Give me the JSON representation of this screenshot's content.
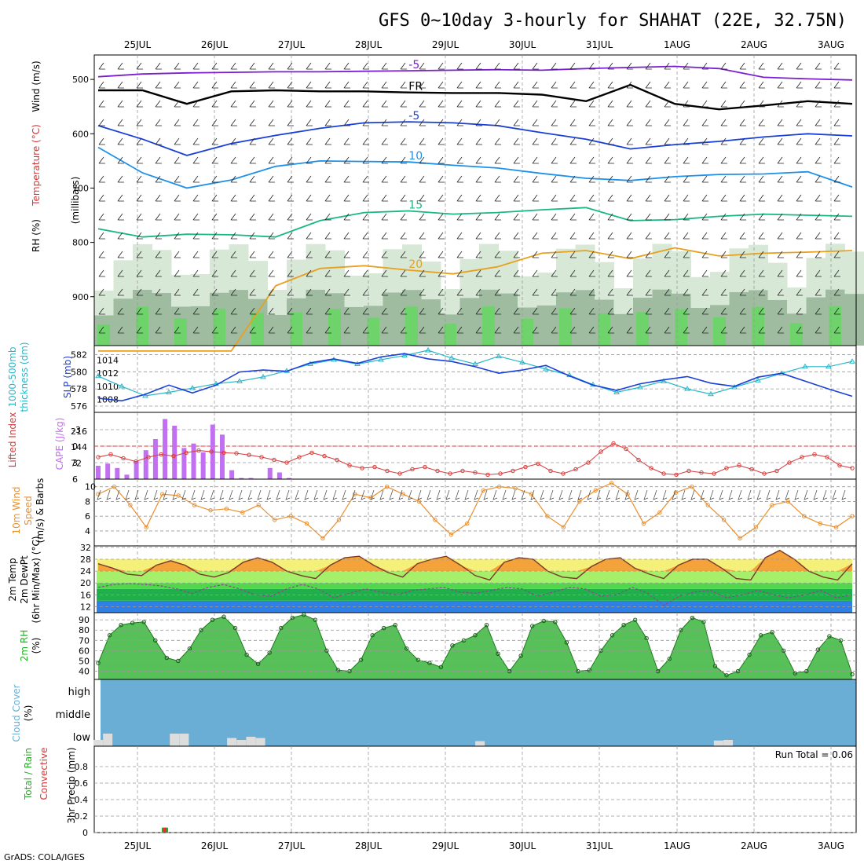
{
  "chart_data": {
    "type": "meteogram",
    "title": "GFS 0~10day 3-hourly for SHAHAT (22E, 32.75N)",
    "credit": "GrADS: COLA/IGES",
    "dates": [
      "25JUL",
      "26JUL",
      "27JUL",
      "28JUL",
      "29JUL",
      "30JUL",
      "31JUL",
      "1AUG",
      "2AUG",
      "3AUG"
    ],
    "colors": {
      "purple": "#7a1fd0",
      "freezing": "#000000",
      "blue5": "#1a3fd8",
      "sky10": "#1e90e8",
      "green15": "#18b880",
      "orange20": "#e8a020",
      "orange25": "#e88020",
      "slp": "#1a3fd8",
      "thick": "#29b8c8",
      "cape": "#c070f0",
      "li": "#d83a3a",
      "wind": "#e89030",
      "rh": "#20b020",
      "cloud": "#6aaed6",
      "rain_total": "#20b020",
      "rain_conv": "#e03030"
    },
    "panels": [
      {
        "id": "upper-air",
        "ylabel_parts": [
          "RH (%)",
          "Temperature (°C)",
          "Wind (m/s)"
        ],
        "axis_label": "(millibars)",
        "type": "contour",
        "yticks": [
          500,
          600,
          700,
          800,
          900
        ],
        "contours": [
          {
            "label": "-5",
            "color": "purple",
            "pressure": [
              495,
              490,
              488,
              487,
              486,
              486,
              485,
              484,
              483,
              482,
              483,
              480,
              478,
              476,
              480,
              496,
              499,
              501
            ]
          },
          {
            "label": "FR",
            "color": "freezing",
            "pressure": [
              520,
              520,
              545,
              522,
              520,
              522,
              522,
              524,
              525,
              525,
              528,
              540,
              510,
              545,
              555,
              548,
              540,
              545
            ]
          },
          {
            "label": "-5",
            "color": "blue5",
            "pressure": [
              585,
              610,
              640,
              618,
              603,
              590,
              580,
              578,
              580,
              585,
              598,
              610,
              628,
              620,
              614,
              606,
              600,
              604
            ]
          },
          {
            "label": "10",
            "color": "sky10",
            "pressure": [
              625,
              672,
              700,
              685,
              660,
              650,
              651,
              652,
              658,
              663,
              673,
              682,
              686,
              679,
              675,
              674,
              670,
              698
            ]
          },
          {
            "label": "15",
            "color": "green15",
            "pressure": [
              775,
              790,
              785,
              786,
              790,
              760,
              745,
              742,
              748,
              745,
              740,
              736,
              760,
              758,
              752,
              748,
              750,
              752
            ]
          },
          {
            "label": "20",
            "color": "orange20",
            "pressure": [
              1000,
              1000,
              1000,
              1000,
              880,
              848,
              843,
              851,
              858,
              845,
              820,
              815,
              830,
              810,
              825,
              820,
              818,
              815
            ]
          }
        ]
      },
      {
        "id": "slp-thickness",
        "ylabel_parts": [
          "1000-500mb",
          "thickness (dm)",
          "SLP (mb)"
        ],
        "type": "line",
        "left_ticks": [
          576,
          578,
          580,
          582
        ],
        "right_ticks": [
          1008,
          1010,
          1012,
          1014
        ],
        "series": [
          {
            "name": "SLP (mb)",
            "color": "slp",
            "values": [
              1008.2,
              1007.8,
              1008.8,
              1010.2,
              1009.0,
              1010.2,
              1012.2,
              1012.5,
              1012.3,
              1013.6,
              1014.2,
              1013.5,
              1014.5,
              1015.0,
              1014.2,
              1013.8,
              1013.0,
              1012.0,
              1012.5,
              1013.2,
              1011.6,
              1010.2,
              1009.4,
              1010.4,
              1011.0,
              1011.5,
              1010.5,
              1010.0,
              1011.4,
              1012.0,
              1010.8,
              1009.6,
              1008.5
            ]
          },
          {
            "name": "thickness (dm)",
            "color": "thick",
            "values": [
              579.5,
              578.3,
              577.2,
              577.6,
              578.1,
              578.6,
              578.9,
              579.4,
              580.1,
              580.9,
              581.4,
              580.9,
              581.4,
              581.9,
              582.5,
              581.6,
              580.9,
              581.8,
              581.1,
              580.3,
              579.6,
              578.5,
              577.6,
              578.2,
              578.9,
              578.0,
              577.4,
              578.2,
              579.0,
              579.8,
              580.6,
              580.6,
              581.2
            ]
          }
        ]
      },
      {
        "id": "cape-li",
        "ylabel_parts": [
          "CAPE (J/kg)",
          "Lifted Index"
        ],
        "type": "bar+line",
        "left_ticks": [
          "-3",
          "0",
          "3",
          "6"
        ],
        "cape_ticks": [
          "216",
          "144",
          "72"
        ],
        "cape": [
          60,
          70,
          50,
          20,
          80,
          130,
          180,
          270,
          240,
          140,
          160,
          120,
          245,
          200,
          40,
          5,
          5,
          0,
          50,
          30,
          5,
          0,
          0,
          0,
          0,
          0,
          0,
          0,
          0,
          0,
          0,
          0,
          0,
          0,
          0,
          0,
          0,
          0,
          0,
          0,
          0,
          0,
          0,
          0,
          0,
          0,
          0,
          0,
          0,
          0,
          0,
          0,
          0,
          0,
          0,
          0,
          0,
          0,
          0,
          0,
          0,
          0,
          0,
          0,
          0,
          0,
          0,
          0,
          0,
          0,
          0,
          0,
          0,
          0,
          0,
          0,
          0,
          0,
          0,
          0,
          0,
          0,
          0,
          0,
          0,
          0,
          0,
          0,
          0,
          0,
          0,
          0,
          0,
          0,
          0,
          0,
          0,
          0,
          0,
          0,
          0,
          0,
          0,
          0,
          0,
          0,
          0,
          0,
          0,
          0,
          0,
          0
        ],
        "li": [
          2.0,
          1.5,
          2.2,
          2.8,
          2.0,
          1.5,
          1.8,
          1.2,
          0.8,
          1.0,
          1.2,
          1.3,
          1.6,
          2.0,
          2.5,
          3.0,
          2.0,
          1.2,
          1.8,
          2.5,
          3.5,
          4.0,
          3.8,
          4.5,
          5.0,
          4.2,
          3.8,
          4.5,
          5.0,
          4.5,
          4.8,
          5.2,
          5.0,
          4.5,
          3.8,
          3.2,
          4.5,
          5.0,
          4.2,
          3.0,
          1.0,
          -0.5,
          0.5,
          2.5,
          4.0,
          5.0,
          5.2,
          4.5,
          4.8,
          5.0,
          4.0,
          3.5,
          4.2,
          5.0,
          4.5,
          3.0,
          2.0,
          1.5,
          2.0,
          3.5,
          4.0
        ]
      },
      {
        "id": "wind-10m",
        "ylabel_parts": [
          "10m Wind",
          "Speed",
          "(m/s) & Barbs"
        ],
        "type": "line",
        "yticks": [
          4,
          6,
          8,
          10
        ],
        "series": [
          {
            "name": "10m Wind Speed (m/s)",
            "color": "wind",
            "values": [
              9.0,
              10.0,
              7.5,
              4.5,
              9.0,
              8.8,
              7.5,
              6.8,
              7.0,
              6.5,
              7.5,
              5.5,
              6.0,
              5.0,
              3.0,
              5.5,
              9.0,
              8.5,
              10.0,
              9.0,
              8.0,
              5.5,
              3.5,
              5.0,
              9.5,
              10.0,
              9.8,
              9.0,
              6.0,
              4.5,
              8.0,
              9.5,
              10.5,
              9.0,
              5.0,
              6.5,
              9.2,
              10.0,
              7.5,
              5.5,
              3.0,
              4.5,
              7.5,
              8.0,
              6.0,
              5.0,
              4.5,
              6.0
            ]
          }
        ]
      },
      {
        "id": "temp-2m",
        "ylabel_parts": [
          "2m Temp",
          "2m DewPt",
          "(6hr Min/Max) (°C)"
        ],
        "type": "area",
        "yticks": [
          12,
          16,
          20,
          24,
          28,
          32
        ],
        "temp": [
          26.5,
          25.0,
          23.0,
          22.5,
          26.0,
          27.5,
          26.0,
          23.0,
          22.0,
          23.5,
          27.0,
          28.5,
          27.0,
          24.0,
          22.5,
          21.5,
          26.0,
          28.5,
          29.0,
          26.0,
          23.5,
          22.0,
          26.5,
          28.0,
          29.0,
          26.0,
          22.5,
          21.0,
          27.0,
          28.5,
          28.0,
          24.0,
          22.0,
          21.5,
          25.5,
          28.0,
          28.5,
          25.0,
          23.0,
          21.5,
          26.0,
          28.0,
          28.0,
          25.0,
          21.5,
          21.0,
          28.5,
          31.0,
          28.0,
          24.0,
          22.0,
          21.0,
          26.5
        ],
        "dewpoint": [
          18.5,
          19.5,
          19.8,
          19.5,
          19.0,
          18.0,
          16.5,
          18.5,
          19.5,
          18.0,
          16.0,
          15.5,
          18.0,
          19.5,
          18.0,
          15.0,
          16.5,
          18.0,
          17.0,
          16.0,
          17.5,
          18.0,
          18.5,
          17.0,
          16.5,
          17.5,
          18.5,
          18.0,
          15.5,
          17.0,
          18.5,
          18.0,
          15.5,
          16.0,
          18.5,
          16.5,
          12.5,
          15.5,
          17.0,
          17.5,
          15.0,
          16.0,
          17.5,
          16.0,
          15.0,
          16.0,
          17.5,
          15.0,
          16.0
        ]
      },
      {
        "id": "rh-2m",
        "ylabel_parts": [
          "2m RH",
          "(%)"
        ],
        "type": "area",
        "yticks": [
          40,
          50,
          60,
          70,
          80,
          90
        ],
        "values": [
          48,
          75,
          85,
          87,
          88,
          70,
          53,
          50,
          62,
          80,
          90,
          93,
          82,
          56,
          47,
          58,
          82,
          92,
          95,
          90,
          60,
          41,
          40,
          51,
          75,
          82,
          85,
          62,
          51,
          48,
          44,
          65,
          70,
          75,
          85,
          57,
          40,
          55,
          84,
          89,
          88,
          68,
          40,
          41,
          60,
          75,
          85,
          90,
          72,
          40,
          52,
          80,
          92,
          88,
          45,
          36,
          40,
          56,
          75,
          78,
          60,
          38,
          40,
          61,
          74,
          70,
          37
        ]
      },
      {
        "id": "cloud",
        "ylabel_parts": [
          "Cloud Cover",
          "(%)"
        ],
        "type": "band",
        "levels": [
          "high",
          "middle",
          "low"
        ],
        "high_cover_pct": 100,
        "middle_cover_pct": 100,
        "low_cover_pct": [
          5,
          15,
          0,
          0,
          0,
          0,
          0,
          0,
          15,
          15,
          0,
          0,
          0,
          0,
          8,
          5,
          10,
          8,
          0,
          0,
          0,
          0,
          0,
          0,
          0,
          0,
          0,
          0,
          0,
          0,
          0,
          0,
          0,
          0,
          0,
          0,
          0,
          0,
          0,
          0,
          3,
          0,
          0,
          0,
          0,
          0,
          0,
          0,
          0,
          0,
          0,
          0,
          0,
          0,
          0,
          0,
          0,
          0,
          0,
          0,
          0,
          0,
          0,
          0,
          0,
          4,
          5,
          0,
          0,
          0,
          0,
          0,
          0,
          0,
          0,
          0,
          0,
          0,
          0,
          0
        ]
      },
      {
        "id": "precip",
        "ylabel_parts": [
          "Total / Rain",
          "Convective",
          "3hr Precip (mm)"
        ],
        "type": "bar",
        "yticks": [
          0,
          0.2,
          0.4,
          0.6,
          0.8
        ],
        "run_total_label": "Run Total = 0.06",
        "bars": [
          {
            "index": 7,
            "total": 0.06,
            "convective": 0.06
          }
        ]
      }
    ]
  }
}
